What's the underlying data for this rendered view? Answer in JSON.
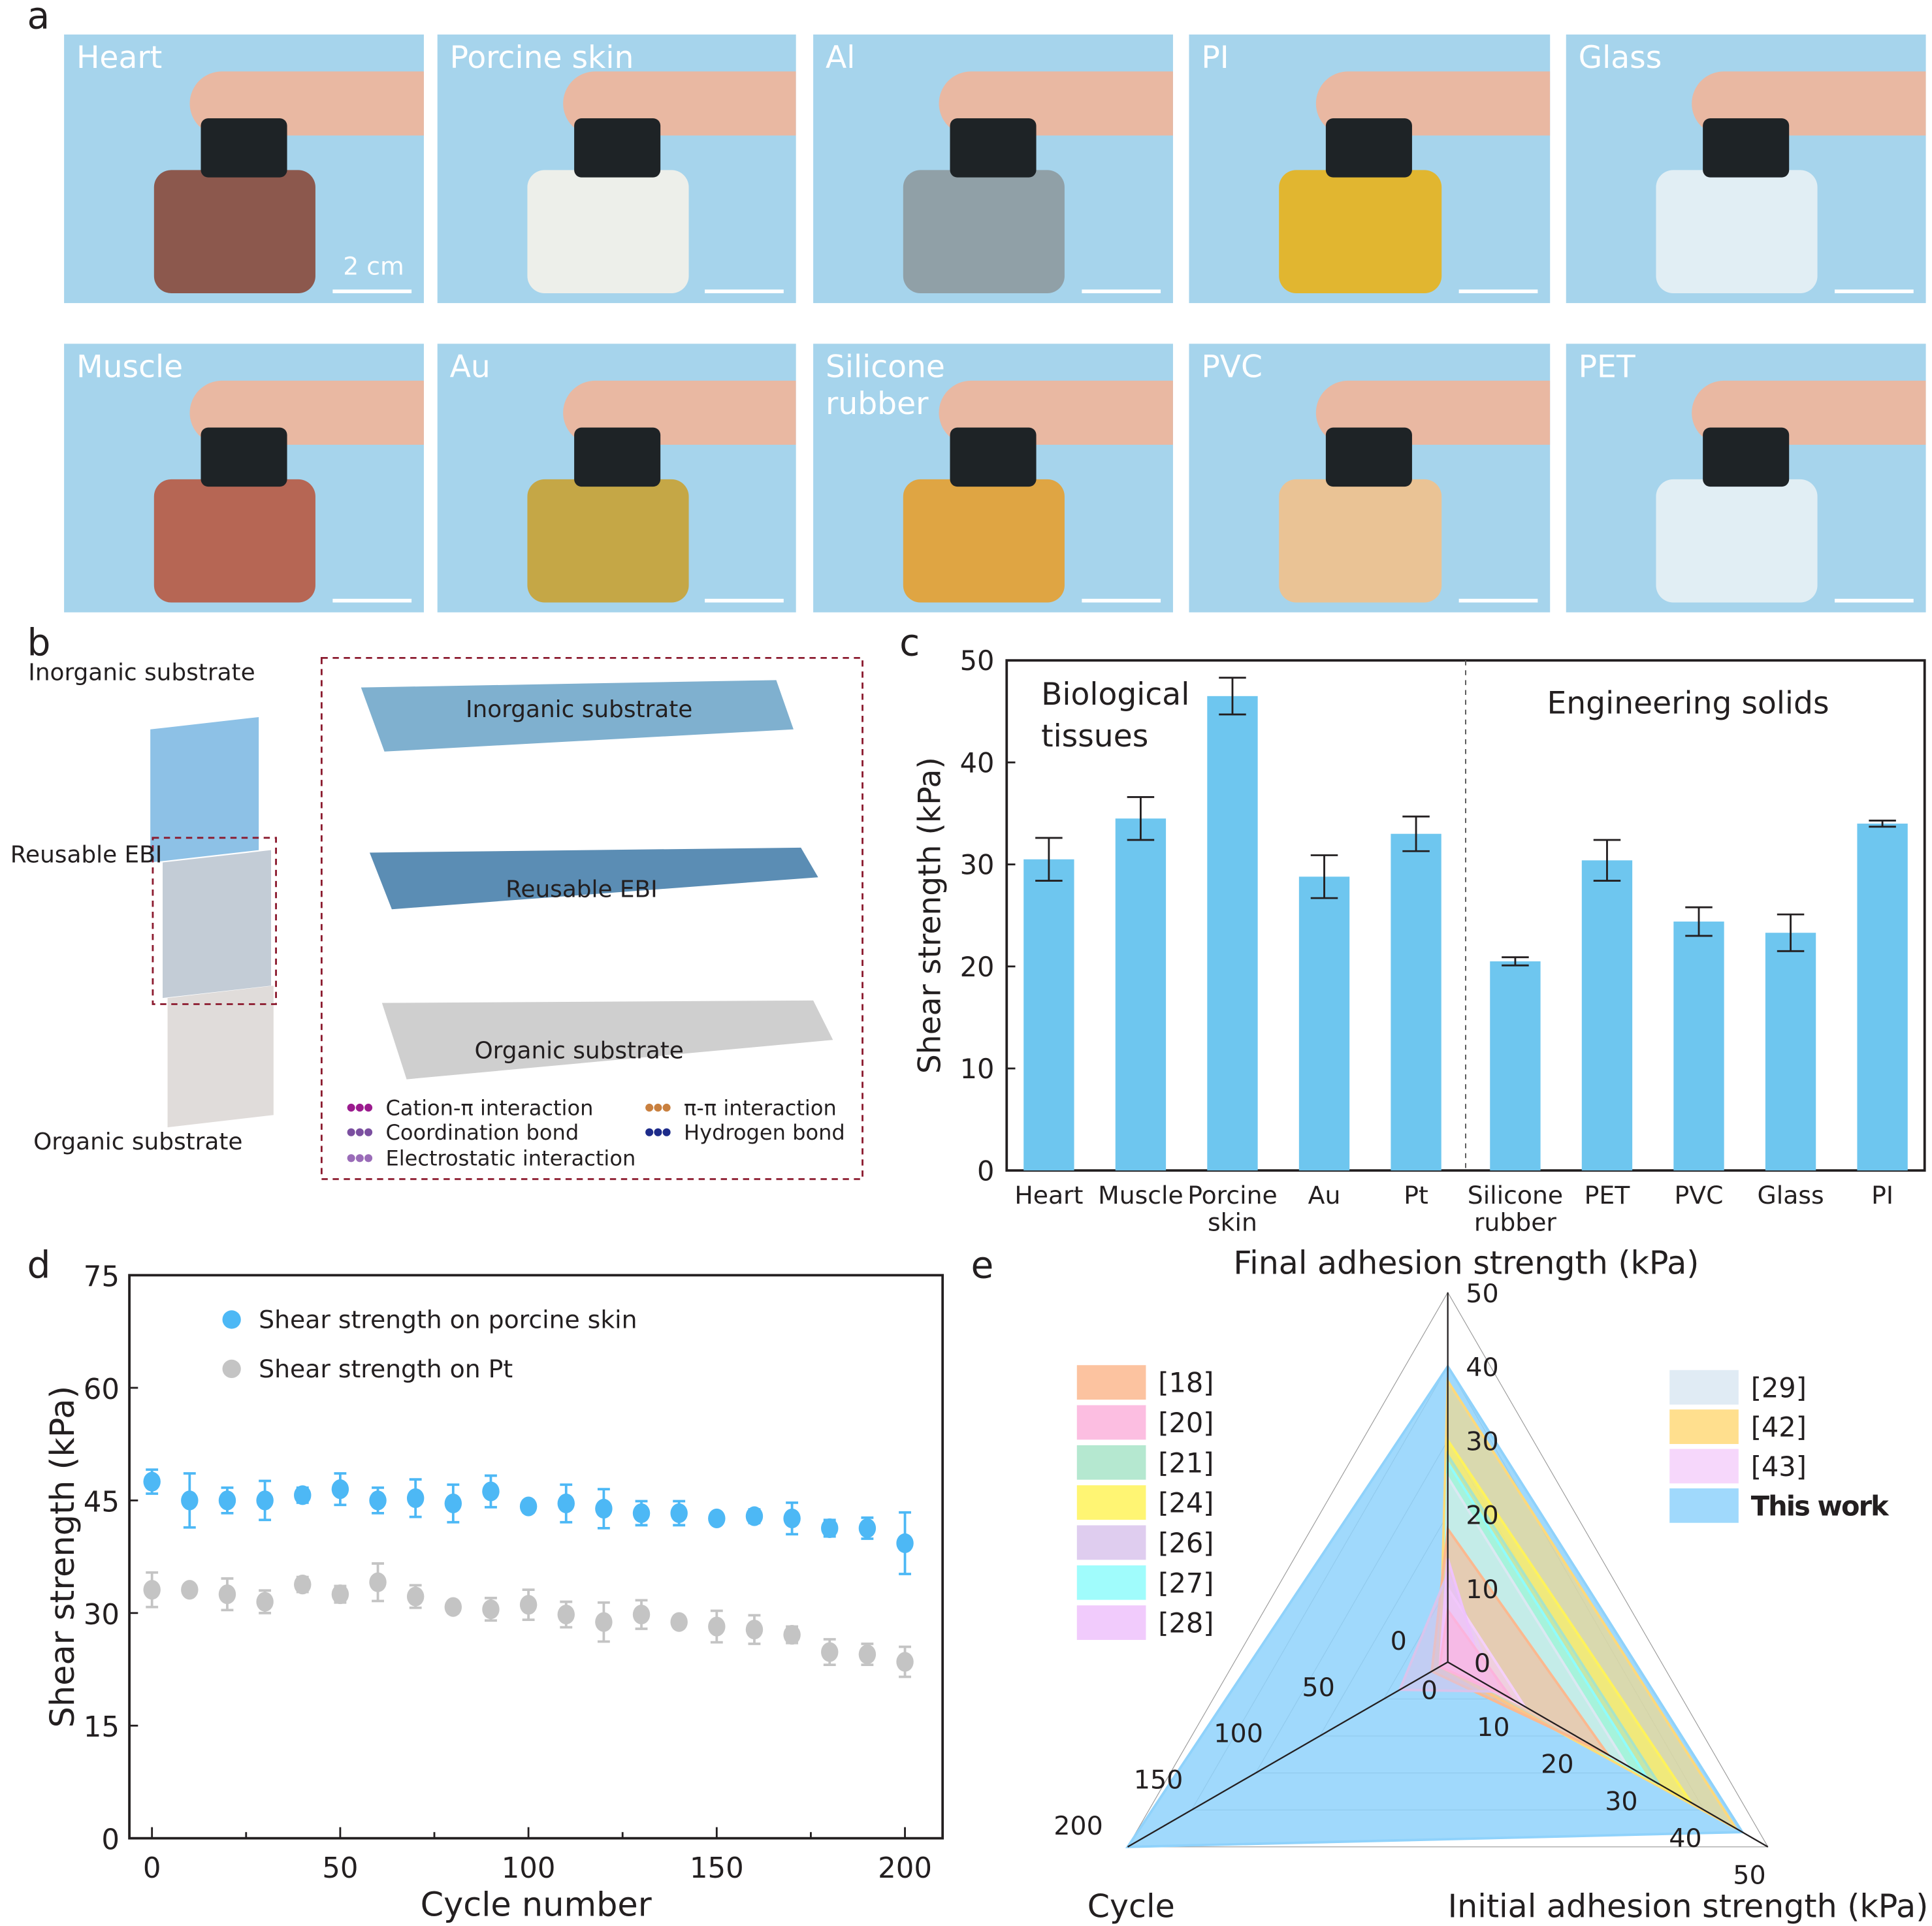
{
  "panel_labels": {
    "a": "a",
    "b": "b",
    "c": "c",
    "d": "d",
    "e": "e"
  },
  "panel_a": {
    "tiles": [
      {
        "label": "Heart",
        "substrate_color": "#8a4a3c"
      },
      {
        "label": "Porcine skin",
        "substrate_color": "#f5f2ea"
      },
      {
        "label": "Al",
        "substrate_color": "#8e9aa0"
      },
      {
        "label": "PI",
        "substrate_color": "#e8b21c"
      },
      {
        "label": "Glass",
        "substrate_color": "#e8f1f5"
      },
      {
        "label": "Muscle",
        "substrate_color": "#b85a44"
      },
      {
        "label": "Au",
        "substrate_color": "#c9a234"
      },
      {
        "label": "Silicone rubber",
        "substrate_color": "#e6a031"
      },
      {
        "label": "PVC",
        "substrate_color": "#f2c18c"
      },
      {
        "label": "PET",
        "substrate_color": "#e8f1f5"
      }
    ],
    "scale_bar": "2 cm"
  },
  "panel_b": {
    "left_labels": {
      "inorganic": "Inorganic substrate",
      "ebi": "Reusable EBI",
      "organic": "Organic substrate"
    },
    "box_labels": {
      "inorganic": "Inorganic substrate",
      "ebi": "Reusable EBI",
      "organic": "Organic substrate"
    },
    "legend": [
      {
        "label": "Cation-π interaction",
        "color": "#9b1b8e"
      },
      {
        "label": "Coordination bond",
        "color": "#7b4fa0"
      },
      {
        "label": "Electrostatic interaction",
        "color": "#9a6cb8"
      },
      {
        "label": "π-π interaction",
        "color": "#c9803f"
      },
      {
        "label": "Hydrogen bond",
        "color": "#1d2b8a"
      }
    ]
  },
  "chart_data": [
    {
      "type": "bar",
      "id": "c",
      "ylabel": "Shear strength (kPa)",
      "ylim": [
        0,
        50
      ],
      "yticks": [
        0,
        10,
        20,
        30,
        40,
        50
      ],
      "groups": [
        {
          "label": "Biological tissues"
        },
        {
          "label": "Engineering solids"
        }
      ],
      "categories": [
        "Heart",
        "Muscle",
        "Porcine skin",
        "Au",
        "Pt",
        "Silicone rubber",
        "PET",
        "PVC",
        "Glass",
        "PI"
      ],
      "values": [
        30.5,
        34.5,
        46.5,
        28.8,
        33.0,
        20.5,
        30.4,
        24.4,
        23.3,
        34.0
      ],
      "errors": [
        2.1,
        2.1,
        1.8,
        2.1,
        1.7,
        0.4,
        2.0,
        1.4,
        1.8,
        0.3
      ],
      "color": "#6ec6ef"
    },
    {
      "type": "scatter",
      "id": "d",
      "xlabel": "Cycle number",
      "ylabel": "Shear strength (kPa)",
      "xlim": [
        -6,
        210
      ],
      "ylim": [
        0,
        75
      ],
      "xticks": [
        0,
        50,
        100,
        150,
        200
      ],
      "yticks": [
        0,
        15,
        30,
        45,
        60,
        75
      ],
      "x": [
        0,
        10,
        20,
        30,
        40,
        50,
        60,
        70,
        80,
        90,
        100,
        110,
        120,
        130,
        140,
        150,
        160,
        170,
        180,
        190,
        200
      ],
      "series": [
        {
          "name": "Shear strength on porcine skin",
          "color": "#4db8f5",
          "values": [
            47.5,
            45,
            45,
            45,
            45.7,
            46.5,
            45,
            45.3,
            44.6,
            46.2,
            44.2,
            44.6,
            43.9,
            43.3,
            43.3,
            42.6,
            42.9,
            42.6,
            41.3,
            41.3,
            39.3
          ],
          "errors": [
            1.6,
            3.6,
            1.7,
            2.6,
            1.0,
            2.1,
            1.7,
            2.5,
            2.5,
            2.1,
            0.8,
            2.5,
            2.6,
            1.6,
            1.6,
            0.3,
            0.9,
            2.1,
            1.1,
            1.4,
            4.1
          ]
        },
        {
          "name": "Shear strength on Pt",
          "color": "#c4c4c4",
          "values": [
            33.1,
            33.1,
            32.5,
            31.5,
            33.8,
            32.5,
            34.1,
            32.2,
            30.8,
            30.5,
            31.1,
            29.8,
            28.8,
            29.8,
            28.8,
            28.2,
            27.8,
            27.1,
            24.8,
            24.5,
            23.5
          ],
          "errors": [
            2.3,
            0.4,
            2.1,
            1.5,
            1.0,
            1.1,
            2.5,
            1.5,
            0.8,
            1.5,
            2.0,
            1.7,
            2.6,
            1.9,
            0.8,
            2.1,
            1.9,
            1.1,
            1.7,
            1.4,
            2.0
          ]
        }
      ],
      "legend_position": "top-left"
    },
    {
      "type": "radar",
      "id": "e",
      "axes": [
        {
          "label": "Final adhesion strength (kPa)",
          "max": 50,
          "ticks": [
            0,
            10,
            20,
            30,
            40,
            50
          ]
        },
        {
          "label": "Initial adhesion strength (kPa)",
          "max": 50,
          "ticks": [
            0,
            10,
            20,
            30,
            40,
            50
          ]
        },
        {
          "label": "Cycle",
          "max": 200,
          "ticks": [
            0,
            50,
            100,
            150,
            200
          ]
        }
      ],
      "series": [
        {
          "name": "[18]",
          "color": "#fbb88f",
          "values": [
            18,
            25,
            10
          ]
        },
        {
          "name": "[20]",
          "color": "#fcb3dc",
          "values": [
            7,
            10,
            5
          ]
        },
        {
          "name": "[21]",
          "color": "#a8e4c8",
          "values": [
            28,
            33,
            3
          ]
        },
        {
          "name": "[24]",
          "color": "#fff35a",
          "values": [
            30,
            38,
            3
          ]
        },
        {
          "name": "[26]",
          "color": "#d9c4ec",
          "values": [
            12,
            8,
            30
          ]
        },
        {
          "name": "[27]",
          "color": "#8ffcfc",
          "values": [
            27,
            31,
            3
          ]
        },
        {
          "name": "[28]",
          "color": "#efc2fc",
          "values": [
            14,
            6,
            5
          ]
        },
        {
          "name": "[29]",
          "color": "#dbe8f2",
          "values": [
            25,
            28,
            2
          ]
        },
        {
          "name": "[42]",
          "color": "#ffd97a",
          "values": [
            38,
            45,
            5
          ]
        },
        {
          "name": "[43]",
          "color": "#f5d0fa",
          "values": [
            10,
            12,
            4
          ]
        },
        {
          "name": "This work",
          "color": "#8fd2fb",
          "values": [
            40,
            46,
            200
          ]
        }
      ],
      "highlight_color": "#e60012"
    }
  ]
}
